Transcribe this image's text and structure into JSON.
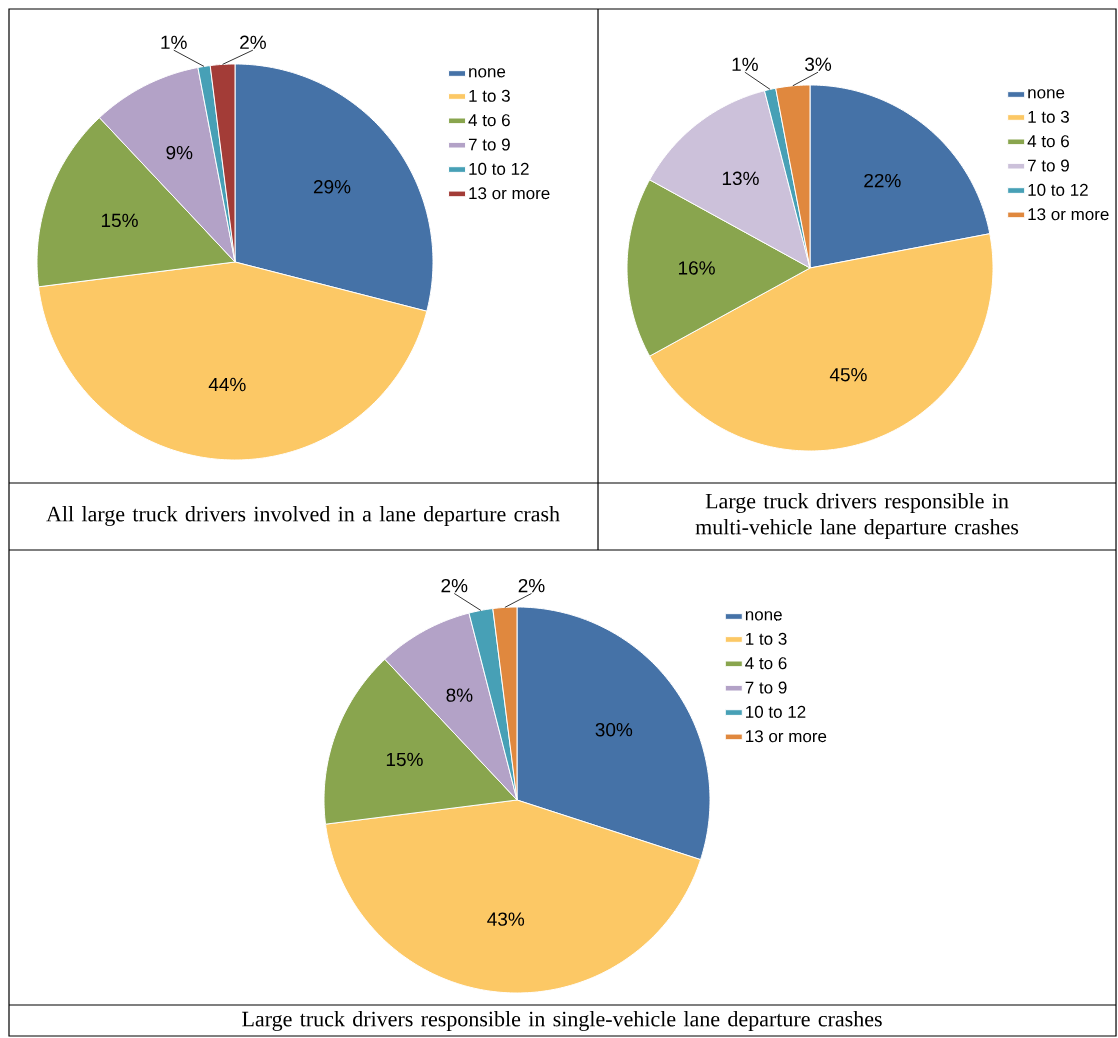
{
  "chart_data": [
    {
      "type": "pie",
      "title": "All large truck drivers involved in a lane departure crash",
      "categories": [
        "none",
        "1 to 3",
        "4 to 6",
        "7 to 9",
        "10 to 12",
        "13 or more"
      ],
      "values": [
        29,
        44,
        15,
        9,
        1,
        2
      ],
      "colors": [
        "#4572a7",
        "#fcc865",
        "#89a54e",
        "#b3a2c7",
        "#47a0b6",
        "#a33c37"
      ],
      "value_labels": [
        "29%",
        "44%",
        "15%",
        "9%",
        "1%",
        "2%"
      ],
      "legend": "top right"
    },
    {
      "type": "pie",
      "title": "Large truck drivers responsible in multi-vehicle lane departure crashes",
      "categories": [
        "none",
        "1 to 3",
        "4 to 6",
        "7 to 9",
        "10 to 12",
        "13 or more"
      ],
      "values": [
        22,
        45,
        16,
        13,
        1,
        3
      ],
      "colors": [
        "#4572a7",
        "#fcc865",
        "#89a54e",
        "#ccc1da",
        "#47a0b6",
        "#e0883e"
      ],
      "value_labels": [
        "22%",
        "45%",
        "16%",
        "13%",
        "1%",
        "3%"
      ],
      "legend": "top right"
    },
    {
      "type": "pie",
      "title": "Large truck drivers responsible in single-vehicle lane departure crashes",
      "categories": [
        "none",
        "1 to 3",
        "4 to 6",
        "7 to 9",
        "10 to 12",
        "13 or more"
      ],
      "values": [
        30,
        43,
        15,
        8,
        2,
        2
      ],
      "colors": [
        "#4572a7",
        "#fcc865",
        "#89a54e",
        "#b3a2c7",
        "#47a0b6",
        "#e0883e"
      ],
      "value_labels": [
        "30%",
        "43%",
        "15%",
        "8%",
        "2%",
        "2%"
      ],
      "legend": "top right"
    }
  ]
}
